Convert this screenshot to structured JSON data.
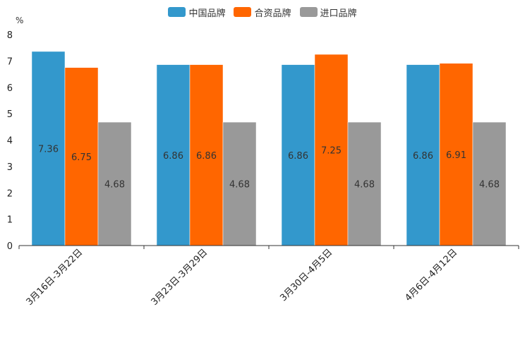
{
  "chart_data": {
    "type": "bar",
    "ylabel": "%",
    "ylim": [
      0,
      8
    ],
    "yticks": [
      "0",
      "1",
      "2",
      "3",
      "4",
      "5",
      "6",
      "7",
      "8"
    ],
    "categories": [
      "3月16日-3月22日",
      "3月23日-3月29日",
      "3月30日-4月5日",
      "4月6日-4月12日"
    ],
    "series": [
      {
        "name": "中国品牌",
        "color": "#3398cc",
        "values": [
          7.36,
          6.86,
          6.86,
          6.86
        ]
      },
      {
        "name": "合资品牌",
        "color": "#ff6600",
        "values": [
          6.75,
          6.86,
          7.25,
          6.91
        ]
      },
      {
        "name": "进口品牌",
        "color": "#999999",
        "values": [
          4.68,
          4.68,
          4.68,
          4.68
        ]
      }
    ],
    "legend_position": "top-center"
  }
}
